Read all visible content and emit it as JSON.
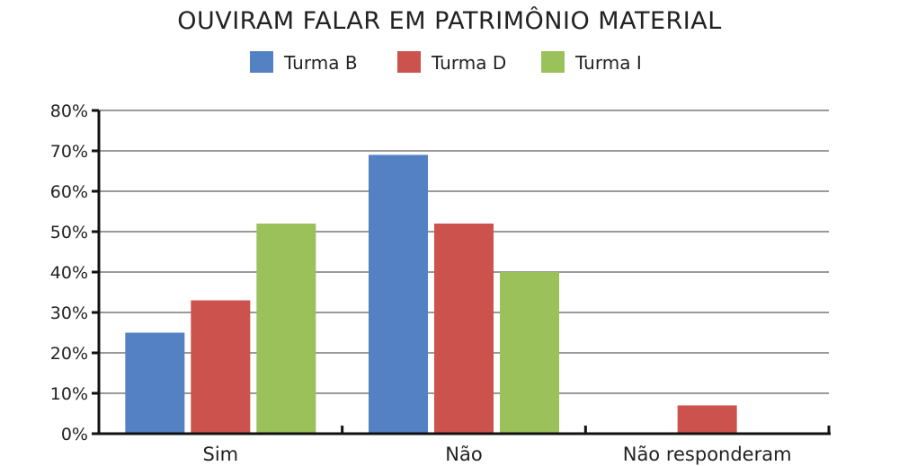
{
  "chart_data": {
    "type": "bar",
    "title": "OUVIRAM FALAR EM PATRIMÔNIO MATERIAL",
    "xlabel": "",
    "ylabel": "",
    "categories": [
      "Sim",
      "Não",
      "Não responderam"
    ],
    "series": [
      {
        "name": "Turma B",
        "color": "#5480C4",
        "values": [
          25,
          69,
          0
        ]
      },
      {
        "name": "Turma D",
        "color": "#CC524E",
        "values": [
          33,
          52,
          7
        ]
      },
      {
        "name": "Turma I",
        "color": "#9BC15B",
        "values": [
          52,
          40,
          0
        ]
      }
    ],
    "ylim": [
      0,
      80
    ],
    "yticks": [
      0,
      10,
      20,
      30,
      40,
      50,
      60,
      70,
      80
    ],
    "ytick_labels": [
      "0%",
      "10%",
      "20%",
      "30%",
      "40%",
      "50%",
      "60%",
      "70%",
      "80%"
    ],
    "grid": true,
    "legend_position": "top-center"
  }
}
